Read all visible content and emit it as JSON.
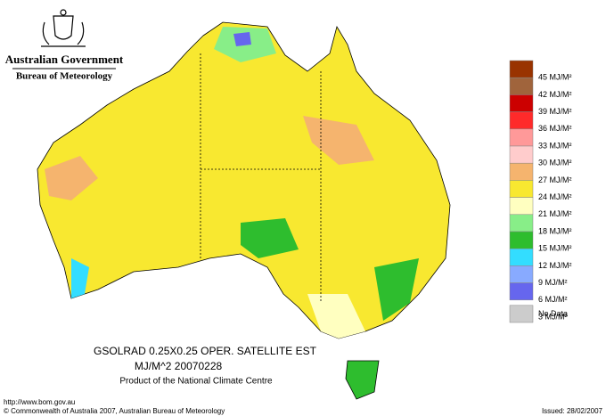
{
  "header": {
    "government": "Australian Government",
    "bureau": "Bureau of Meteorology"
  },
  "map": {
    "title": "GSOLRAD    0.25X0.25 OPER. SATELLITE EST",
    "subtitle": "MJ/M^2  20070228",
    "credit": "Product of the National Climate Centre"
  },
  "legend": {
    "colors": [
      "#993300",
      "#a0643c",
      "#cc0000",
      "#ff2a2a",
      "#ff9999",
      "#ffcccc",
      "#f5b46e",
      "#f8e830",
      "#ffffc0",
      "#88ee88",
      "#2ebd2e",
      "#33ddff",
      "#88aaff",
      "#6666ee",
      "#cccccc"
    ],
    "labels": [
      "45 MJ/M²",
      "42 MJ/M²",
      "39 MJ/M²",
      "36 MJ/M²",
      "33 MJ/M²",
      "30 MJ/M²",
      "27 MJ/M²",
      "24 MJ/M²",
      "21 MJ/M²",
      "18 MJ/M²",
      "15 MJ/M²",
      "12 MJ/M²",
      "9 MJ/M²",
      "6 MJ/M²",
      "3 MJ/M²"
    ],
    "no_data": "No Data"
  },
  "footer": {
    "url": "http://www.bom.gov.au",
    "copyright": "© Commonwealth of Australia 2007, Australian Bureau of Meteorology",
    "issued": "Issued: 28/02/2007"
  }
}
